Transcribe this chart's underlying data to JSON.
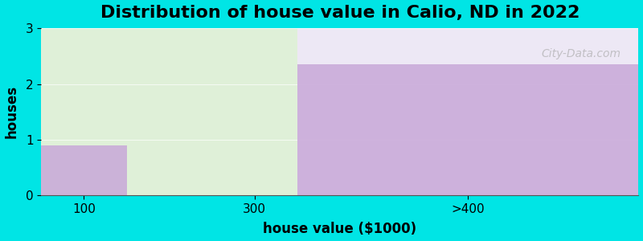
{
  "title": "Distribution of house value in Calio, ND in 2022",
  "xlabel": "house value ($1000)",
  "ylabel": "houses",
  "xtick_labels": [
    "100",
    "300",
    ">400"
  ],
  "xtick_positions": [
    0.5,
    2.5,
    5.0
  ],
  "bar_edges": [
    0,
    1,
    3,
    7
  ],
  "values": [
    0.9,
    0,
    2.35
  ],
  "bar_color": "#c8a8d8",
  "bg_color": "#00e5e5",
  "plot_bg_color_left": "#dff0d8",
  "plot_bg_color_right": "#ede8f5",
  "ylim": [
    0,
    3
  ],
  "yticks": [
    0,
    1,
    2,
    3
  ],
  "title_fontsize": 16,
  "label_fontsize": 12,
  "tick_fontsize": 11,
  "watermark": "City-Data.com"
}
